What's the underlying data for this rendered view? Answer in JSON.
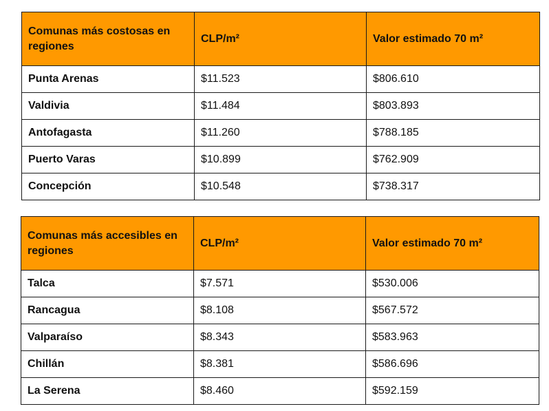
{
  "tables": [
    {
      "headers": [
        "Comunas más costosas en regiones",
        "CLP/m²",
        "Valor estimado 70 m²"
      ],
      "rows": [
        [
          "Punta Arenas",
          "$11.523",
          "$806.610"
        ],
        [
          "Valdivia",
          "$11.484",
          "$803.893"
        ],
        [
          "Antofagasta",
          "$11.260",
          "$788.185"
        ],
        [
          "Puerto Varas",
          "$10.899",
          "$762.909"
        ],
        [
          "Concepción",
          "$10.548",
          "$738.317"
        ]
      ]
    },
    {
      "headers": [
        "Comunas más accesibles en regiones",
        "CLP/m²",
        "Valor estimado 70 m²"
      ],
      "rows": [
        [
          "Talca",
          "$7.571",
          "$530.006"
        ],
        [
          "Rancagua",
          "$8.108",
          "$567.572"
        ],
        [
          "Valparaíso",
          "$8.343",
          "$583.963"
        ],
        [
          "Chillán",
          "$8.381",
          "$586.696"
        ],
        [
          "La Serena",
          "$8.460",
          "$592.159"
        ]
      ]
    }
  ],
  "colors": {
    "header_bg": "#ff9900",
    "border": "#1a1a1a"
  }
}
